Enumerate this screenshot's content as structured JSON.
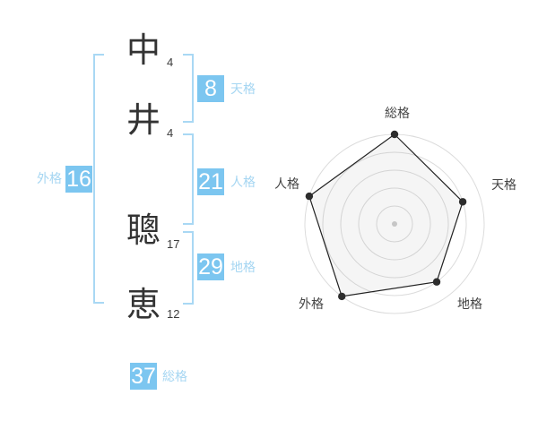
{
  "page": {
    "background": "#ffffff"
  },
  "name": {
    "characters": [
      {
        "char": "中",
        "strokes": "4"
      },
      {
        "char": "井",
        "strokes": "4"
      },
      {
        "char": "聰",
        "strokes": "17"
      },
      {
        "char": "恵",
        "strokes": "12"
      }
    ]
  },
  "badges": {
    "tenkaku": {
      "value": "8",
      "label": "天格"
    },
    "jinkaku": {
      "value": "21",
      "label": "人格"
    },
    "chikaku": {
      "value": "29",
      "label": "地格"
    },
    "gaikaku": {
      "value": "16",
      "label": "外格"
    },
    "soukaku": {
      "value": "37",
      "label": "総格"
    }
  },
  "colors": {
    "badge_bg": "#7cc6f0",
    "badge_text": "#ffffff",
    "side_label": "#a5d6f2",
    "bracket": "#a9d8f4",
    "kanji_text": "#333333",
    "stroke_count_text": "#3c3c3c",
    "radar_label": "#444444",
    "radar_grid": "#dcdcdc",
    "radar_polygon_stroke": "#222222",
    "radar_polygon_fill": "rgba(125,125,125,0.08)",
    "radar_dot": "#2d2d2d",
    "radar_center_dot": "#c6c6c6"
  },
  "chart_data": {
    "type": "radar",
    "categories": [
      "総格",
      "天格",
      "地格",
      "外格",
      "人格"
    ],
    "values": [
      5,
      4,
      4,
      5,
      5
    ],
    "max": 5,
    "rings": 5,
    "start_angle_deg": -90,
    "direction": "clockwise",
    "grid": "circular",
    "legend": "none"
  }
}
